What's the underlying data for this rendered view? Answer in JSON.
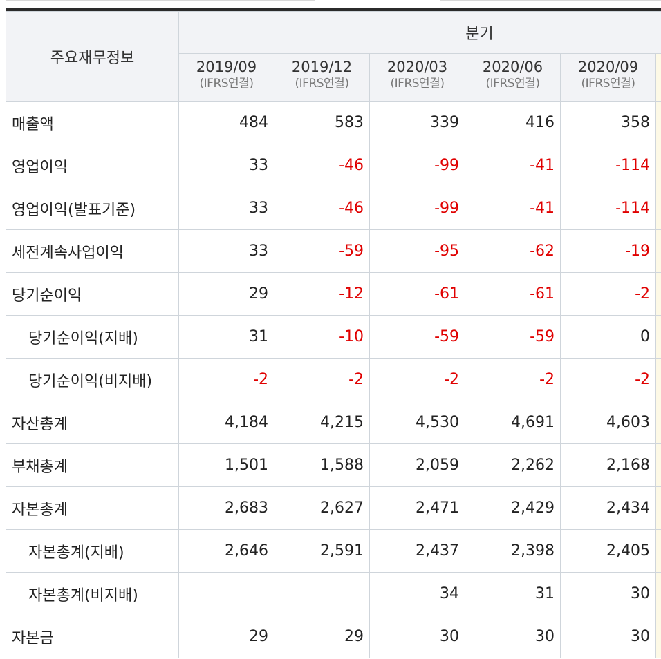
{
  "colors": {
    "negative": "#e00000",
    "header_bg": "#f2f3f6",
    "border": "#cfd5db"
  },
  "header": {
    "title": "주요재무정보",
    "period_label": "분기",
    "columns": [
      {
        "date": "2019/09",
        "basis": "(IFRS연결)"
      },
      {
        "date": "2019/12",
        "basis": "(IFRS연결)"
      },
      {
        "date": "2020/03",
        "basis": "(IFRS연결)"
      },
      {
        "date": "2020/06",
        "basis": "(IFRS연결)"
      },
      {
        "date": "2020/09",
        "basis": "(IFRS연결)"
      }
    ]
  },
  "rows": [
    {
      "label": "매출액",
      "sub": false,
      "values": [
        "484",
        "583",
        "339",
        "416",
        "358"
      ]
    },
    {
      "label": "영업이익",
      "sub": false,
      "values": [
        "33",
        "-46",
        "-99",
        "-41",
        "-114"
      ]
    },
    {
      "label": "영업이익(발표기준)",
      "sub": false,
      "values": [
        "33",
        "-46",
        "-99",
        "-41",
        "-114"
      ]
    },
    {
      "label": "세전계속사업이익",
      "sub": false,
      "values": [
        "33",
        "-59",
        "-95",
        "-62",
        "-19"
      ]
    },
    {
      "label": "당기순이익",
      "sub": false,
      "values": [
        "29",
        "-12",
        "-61",
        "-61",
        "-2"
      ]
    },
    {
      "label": "당기순이익(지배)",
      "sub": true,
      "values": [
        "31",
        "-10",
        "-59",
        "-59",
        "0"
      ]
    },
    {
      "label": "당기순이익(비지배)",
      "sub": true,
      "values": [
        "-2",
        "-2",
        "-2",
        "-2",
        "-2"
      ]
    },
    {
      "label": "자산총계",
      "sub": false,
      "values": [
        "4,184",
        "4,215",
        "4,530",
        "4,691",
        "4,603"
      ]
    },
    {
      "label": "부채총계",
      "sub": false,
      "values": [
        "1,501",
        "1,588",
        "2,059",
        "2,262",
        "2,168"
      ]
    },
    {
      "label": "자본총계",
      "sub": false,
      "values": [
        "2,683",
        "2,627",
        "2,471",
        "2,429",
        "2,434"
      ]
    },
    {
      "label": "자본총계(지배)",
      "sub": true,
      "values": [
        "2,646",
        "2,591",
        "2,437",
        "2,398",
        "2,405"
      ]
    },
    {
      "label": "자본총계(비지배)",
      "sub": true,
      "values": [
        "",
        "",
        "34",
        "31",
        "30"
      ]
    },
    {
      "label": "자본금",
      "sub": false,
      "values": [
        "29",
        "29",
        "30",
        "30",
        "30"
      ]
    }
  ]
}
